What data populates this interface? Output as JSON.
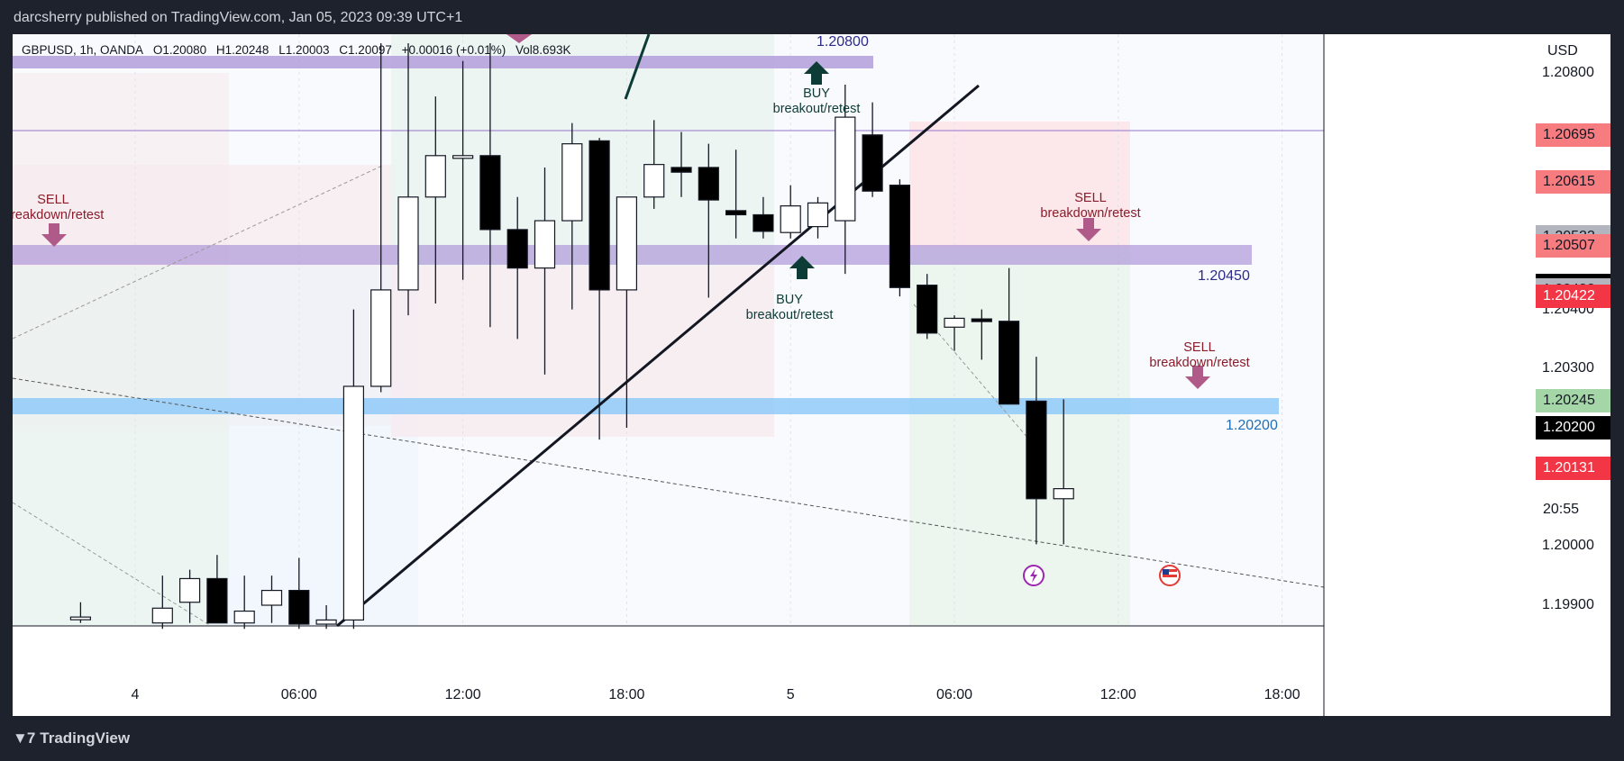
{
  "header": {
    "publisher_line": "darcsherry published on TradingView.com, Jan 05, 2023 09:39 UTC+1"
  },
  "footer": {
    "brand": "TradingView"
  },
  "legend": {
    "symbol": "GBPUSD, 1h, OANDA",
    "open": "O1.20080",
    "high": "H1.20248",
    "low": "L1.20003",
    "close": "C1.20097",
    "change": "+0.00016 (+0.01%)",
    "volume": "Vol8.693K"
  },
  "axis": {
    "currency": "USD"
  },
  "annotations": {
    "sell_left": {
      "line1": "SELL",
      "line2": "breakdown/retest"
    },
    "buy_mid": {
      "line1": "BUY",
      "line2": "breakout/retest"
    },
    "buy_top": {
      "line1": "BUY",
      "line2": "breakout/retest"
    },
    "sell_right": {
      "line1": "SELL",
      "line2": "breakdown/retest"
    },
    "sell_far": {
      "line1": "SELL",
      "line2": "breakdown/retest"
    },
    "level_top": "1.20800",
    "level_mid": "1.20450",
    "level_low": "1.20200"
  },
  "price_tags": [
    {
      "text": "1.20695",
      "price": 1.20695,
      "bg": "#f77c80",
      "fg": "#131722"
    },
    {
      "text": "1.20615",
      "price": 1.20615,
      "bg": "#f77c80",
      "fg": "#131722"
    },
    {
      "text": "1.20523",
      "price": 1.20523,
      "bg": "#b2b5be",
      "fg": "#131722"
    },
    {
      "text": "1.20507",
      "price": 1.20507,
      "bg": "#f77c80",
      "fg": "#131722"
    },
    {
      "text": "1.20441",
      "price": 1.20441,
      "bg": "#000000",
      "fg": "#ffffff"
    },
    {
      "text": "1.20439",
      "price": 1.20439,
      "bg": "#000000",
      "fg": "#ffffff"
    },
    {
      "text": "1.20437",
      "price": 1.20437,
      "bg": "#000000",
      "fg": "#ffffff"
    },
    {
      "text": "1.20433",
      "price": 1.20433,
      "bg": "#b2b5be",
      "fg": "#131722"
    },
    {
      "text": "1.20422",
      "price": 1.20422,
      "bg": "#f23645",
      "fg": "#ffffff"
    },
    {
      "text": "1.20245",
      "price": 1.20245,
      "bg": "#a5d6a7",
      "fg": "#131722"
    },
    {
      "text": "1.20200",
      "price": 1.202,
      "bg": "#000000",
      "fg": "#ffffff"
    },
    {
      "text": "1.20131",
      "price": 1.20131,
      "bg": "#f23645",
      "fg": "#ffffff"
    },
    {
      "text": "20:55",
      "price": 1.20062,
      "bg": "#ffffff",
      "fg": "#131722"
    }
  ],
  "chart_data": {
    "type": "candlestick",
    "y_ticks": [
      "1.20800",
      "1.20400",
      "1.20300",
      "1.20000",
      "1.19900"
    ],
    "ylim": [
      1.19865,
      1.2085
    ],
    "x_ticks": [
      {
        "label": "4",
        "index": 3
      },
      {
        "label": "06:00",
        "index": 9
      },
      {
        "label": "12:00",
        "index": 15
      },
      {
        "label": "18:00",
        "index": 21
      },
      {
        "label": "5",
        "index": 27
      },
      {
        "label": "06:00",
        "index": 33
      },
      {
        "label": "12:00",
        "index": 39
      },
      {
        "label": "18:00",
        "index": 45
      }
    ],
    "candles": [
      {
        "i": 1,
        "o": 1.1988,
        "h": 1.19905,
        "l": 1.1987,
        "c": 1.1988
      },
      {
        "i": 4,
        "o": 1.1987,
        "h": 1.1995,
        "l": 1.1986,
        "c": 1.19895
      },
      {
        "i": 5,
        "o": 1.19905,
        "h": 1.1996,
        "l": 1.1987,
        "c": 1.19945
      },
      {
        "i": 6,
        "o": 1.19945,
        "h": 1.19985,
        "l": 1.1987,
        "c": 1.1987
      },
      {
        "i": 7,
        "o": 1.1987,
        "h": 1.1995,
        "l": 1.1986,
        "c": 1.1989
      },
      {
        "i": 8,
        "o": 1.199,
        "h": 1.1995,
        "l": 1.1987,
        "c": 1.19925
      },
      {
        "i": 9,
        "o": 1.19925,
        "h": 1.1998,
        "l": 1.1986,
        "c": 1.19868
      },
      {
        "i": 10,
        "o": 1.19868,
        "h": 1.199,
        "l": 1.1986,
        "c": 1.19875
      },
      {
        "i": 11,
        "o": 1.19875,
        "h": 1.204,
        "l": 1.1986,
        "c": 1.2027
      },
      {
        "i": 12,
        "o": 1.2027,
        "h": 1.2085,
        "l": 1.2026,
        "c": 1.20433
      },
      {
        "i": 13,
        "o": 1.20433,
        "h": 1.2085,
        "l": 1.2039,
        "c": 1.2059
      },
      {
        "i": 14,
        "o": 1.2059,
        "h": 1.2076,
        "l": 1.2041,
        "c": 1.2066
      },
      {
        "i": 15,
        "o": 1.2066,
        "h": 1.2082,
        "l": 1.2045,
        "c": 1.2066
      },
      {
        "i": 16,
        "o": 1.2066,
        "h": 1.2085,
        "l": 1.2037,
        "c": 1.20535
      },
      {
        "i": 17,
        "o": 1.20535,
        "h": 1.2059,
        "l": 1.2035,
        "c": 1.2047
      },
      {
        "i": 18,
        "o": 1.2047,
        "h": 1.2064,
        "l": 1.2029,
        "c": 1.2055
      },
      {
        "i": 19,
        "o": 1.2055,
        "h": 1.20715,
        "l": 1.204,
        "c": 1.2068
      },
      {
        "i": 20,
        "o": 1.20685,
        "h": 1.2069,
        "l": 1.2018,
        "c": 1.20433
      },
      {
        "i": 21,
        "o": 1.20433,
        "h": 1.2059,
        "l": 1.202,
        "c": 1.2059
      },
      {
        "i": 22,
        "o": 1.2059,
        "h": 1.2072,
        "l": 1.2057,
        "c": 1.20645
      },
      {
        "i": 23,
        "o": 1.2064,
        "h": 1.207,
        "l": 1.2059,
        "c": 1.20632
      },
      {
        "i": 24,
        "o": 1.2064,
        "h": 1.2068,
        "l": 1.2042,
        "c": 1.20585
      },
      {
        "i": 25,
        "o": 1.20567,
        "h": 1.2067,
        "l": 1.2052,
        "c": 1.2056
      },
      {
        "i": 26,
        "o": 1.2056,
        "h": 1.2059,
        "l": 1.2052,
        "c": 1.20532
      },
      {
        "i": 27,
        "o": 1.2053,
        "h": 1.2061,
        "l": 1.2052,
        "c": 1.20575
      },
      {
        "i": 28,
        "o": 1.2054,
        "h": 1.2059,
        "l": 1.2052,
        "c": 1.2058
      },
      {
        "i": 29,
        "o": 1.2055,
        "h": 1.2078,
        "l": 1.2046,
        "c": 1.20725
      },
      {
        "i": 30,
        "o": 1.20695,
        "h": 1.2075,
        "l": 1.2059,
        "c": 1.206
      },
      {
        "i": 31,
        "o": 1.2061,
        "h": 1.2062,
        "l": 1.20422,
        "c": 1.20437
      },
      {
        "i": 32,
        "o": 1.20441,
        "h": 1.2046,
        "l": 1.2035,
        "c": 1.2036
      },
      {
        "i": 33,
        "o": 1.2037,
        "h": 1.2039,
        "l": 1.2033,
        "c": 1.20385
      },
      {
        "i": 34,
        "o": 1.20384,
        "h": 1.204,
        "l": 1.20315,
        "c": 1.2038
      },
      {
        "i": 35,
        "o": 1.2038,
        "h": 1.2047,
        "l": 1.20245,
        "c": 1.2024
      },
      {
        "i": 36,
        "o": 1.20245,
        "h": 1.2032,
        "l": 1.20003,
        "c": 1.2008
      },
      {
        "i": 37,
        "o": 1.2008,
        "h": 1.20248,
        "l": 1.20003,
        "c": 1.20097
      }
    ]
  }
}
